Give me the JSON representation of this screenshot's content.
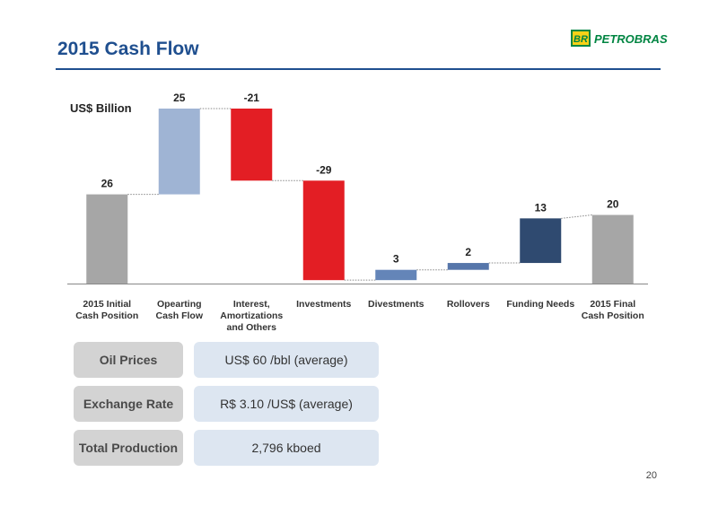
{
  "header": {
    "title": "2015 Cash Flow",
    "logo_mark": "BR",
    "logo": "PETROBRAS"
  },
  "chart_data": {
    "type": "waterfall",
    "y_label": "US$ Billion",
    "categories": [
      "2015 Initial\nCash Position",
      "Opearting\nCash Flow",
      "Interest,\nAmortizations\nand Others",
      "Investments",
      "Divestments",
      "Rollovers",
      "Funding Needs",
      "2015 Final\nCash Position"
    ],
    "values": [
      26,
      25,
      -21,
      -29,
      3,
      2,
      13,
      20
    ],
    "colors": [
      "#a6a6a6",
      "#9fb4d4",
      "#e31e24",
      "#e31e24",
      "#6485b8",
      "#5676aa",
      "#2f4a70",
      "#a6a6a6"
    ],
    "ylim": [
      0,
      51
    ]
  },
  "table": {
    "rows": [
      [
        "Oil Prices",
        "US$ 60 /bbl (average)"
      ],
      [
        "Exchange Rate",
        "R$ 3.10 /US$ (average)"
      ],
      [
        "Total Production",
        "2,796 kboed"
      ]
    ]
  },
  "page_number": "20"
}
